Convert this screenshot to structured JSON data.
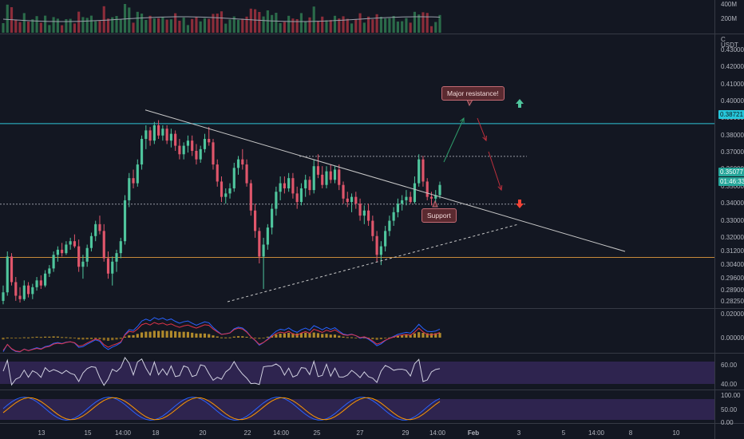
{
  "price_axis": {
    "unit_label": "USDT",
    "currency_symbol": "C",
    "ticks": [
      "0.43000",
      "0.42000",
      "0.41000",
      "0.40000",
      "0.39000",
      "0.38000",
      "0.37000",
      "0.36000",
      "0.35000",
      "0.34000",
      "0.33000",
      "0.32000",
      "0.31200",
      "0.30400",
      "0.29600",
      "0.28900",
      "0.28250"
    ],
    "current_price": "0.35077",
    "countdown": "01:46:33",
    "resistance_price": "0.38721"
  },
  "volume_axis": {
    "ticks": [
      "400M",
      "200M"
    ]
  },
  "macd_axis": {
    "ticks": [
      "0.02000",
      "0.00000"
    ]
  },
  "rsi_axis": {
    "ticks": [
      "60.00",
      "40.00"
    ]
  },
  "stoch_axis": {
    "ticks": [
      "100.00",
      "50.00",
      "0.00"
    ]
  },
  "time_axis": {
    "labels": [
      "13",
      "15",
      "14:00",
      "18",
      "20",
      "22",
      "14:00",
      "25",
      "27",
      "29",
      "14:00",
      "Feb",
      "3",
      "5",
      "14:00",
      "8",
      "10"
    ]
  },
  "annotations": {
    "resistance": "Major resistance!",
    "support": "Support"
  },
  "colors": {
    "background": "#131722",
    "bull": "#4fc59d",
    "bear": "#e0566b",
    "resistance_line": "#2ec4d6",
    "support_line": "#c88a3a",
    "rsi_band": "#3a2b63"
  },
  "chart_data": {
    "type": "candlestick",
    "symbol_quote": "USDT",
    "candles": [
      {
        "o": 0.283,
        "h": 0.292,
        "l": 0.281,
        "c": 0.288
      },
      {
        "o": 0.288,
        "h": 0.312,
        "l": 0.286,
        "c": 0.309
      },
      {
        "o": 0.309,
        "h": 0.311,
        "l": 0.292,
        "c": 0.294
      },
      {
        "o": 0.294,
        "h": 0.297,
        "l": 0.283,
        "c": 0.286
      },
      {
        "o": 0.286,
        "h": 0.291,
        "l": 0.282,
        "c": 0.284
      },
      {
        "o": 0.284,
        "h": 0.295,
        "l": 0.283,
        "c": 0.292
      },
      {
        "o": 0.292,
        "h": 0.294,
        "l": 0.285,
        "c": 0.287
      },
      {
        "o": 0.287,
        "h": 0.293,
        "l": 0.284,
        "c": 0.291
      },
      {
        "o": 0.291,
        "h": 0.297,
        "l": 0.289,
        "c": 0.295
      },
      {
        "o": 0.295,
        "h": 0.298,
        "l": 0.29,
        "c": 0.292
      },
      {
        "o": 0.292,
        "h": 0.301,
        "l": 0.291,
        "c": 0.299
      },
      {
        "o": 0.299,
        "h": 0.304,
        "l": 0.297,
        "c": 0.302
      },
      {
        "o": 0.302,
        "h": 0.312,
        "l": 0.3,
        "c": 0.31
      },
      {
        "o": 0.31,
        "h": 0.315,
        "l": 0.306,
        "c": 0.313
      },
      {
        "o": 0.313,
        "h": 0.317,
        "l": 0.309,
        "c": 0.311
      },
      {
        "o": 0.311,
        "h": 0.318,
        "l": 0.31,
        "c": 0.316
      },
      {
        "o": 0.316,
        "h": 0.32,
        "l": 0.313,
        "c": 0.318
      },
      {
        "o": 0.318,
        "h": 0.322,
        "l": 0.314,
        "c": 0.315
      },
      {
        "o": 0.315,
        "h": 0.319,
        "l": 0.3,
        "c": 0.303
      },
      {
        "o": 0.303,
        "h": 0.31,
        "l": 0.296,
        "c": 0.306
      },
      {
        "o": 0.306,
        "h": 0.316,
        "l": 0.303,
        "c": 0.314
      },
      {
        "o": 0.314,
        "h": 0.323,
        "l": 0.312,
        "c": 0.321
      },
      {
        "o": 0.321,
        "h": 0.33,
        "l": 0.318,
        "c": 0.328
      },
      {
        "o": 0.328,
        "h": 0.333,
        "l": 0.322,
        "c": 0.324
      },
      {
        "o": 0.324,
        "h": 0.328,
        "l": 0.306,
        "c": 0.308
      },
      {
        "o": 0.308,
        "h": 0.312,
        "l": 0.296,
        "c": 0.299
      },
      {
        "o": 0.299,
        "h": 0.309,
        "l": 0.292,
        "c": 0.306
      },
      {
        "o": 0.306,
        "h": 0.313,
        "l": 0.3,
        "c": 0.311
      },
      {
        "o": 0.311,
        "h": 0.32,
        "l": 0.308,
        "c": 0.318
      },
      {
        "o": 0.318,
        "h": 0.345,
        "l": 0.316,
        "c": 0.342
      },
      {
        "o": 0.342,
        "h": 0.358,
        "l": 0.338,
        "c": 0.355
      },
      {
        "o": 0.355,
        "h": 0.36,
        "l": 0.349,
        "c": 0.352
      },
      {
        "o": 0.352,
        "h": 0.366,
        "l": 0.35,
        "c": 0.363
      },
      {
        "o": 0.363,
        "h": 0.38,
        "l": 0.36,
        "c": 0.378
      },
      {
        "o": 0.378,
        "h": 0.386,
        "l": 0.372,
        "c": 0.383
      },
      {
        "o": 0.383,
        "h": 0.385,
        "l": 0.374,
        "c": 0.377
      },
      {
        "o": 0.377,
        "h": 0.388,
        "l": 0.375,
        "c": 0.386
      },
      {
        "o": 0.386,
        "h": 0.389,
        "l": 0.378,
        "c": 0.38
      },
      {
        "o": 0.38,
        "h": 0.386,
        "l": 0.377,
        "c": 0.384
      },
      {
        "o": 0.384,
        "h": 0.386,
        "l": 0.375,
        "c": 0.377
      },
      {
        "o": 0.377,
        "h": 0.384,
        "l": 0.373,
        "c": 0.381
      },
      {
        "o": 0.381,
        "h": 0.383,
        "l": 0.371,
        "c": 0.374
      },
      {
        "o": 0.374,
        "h": 0.378,
        "l": 0.366,
        "c": 0.369
      },
      {
        "o": 0.369,
        "h": 0.376,
        "l": 0.366,
        "c": 0.374
      },
      {
        "o": 0.374,
        "h": 0.38,
        "l": 0.37,
        "c": 0.377
      },
      {
        "o": 0.377,
        "h": 0.38,
        "l": 0.368,
        "c": 0.371
      },
      {
        "o": 0.371,
        "h": 0.375,
        "l": 0.363,
        "c": 0.366
      },
      {
        "o": 0.366,
        "h": 0.374,
        "l": 0.364,
        "c": 0.372
      },
      {
        "o": 0.372,
        "h": 0.381,
        "l": 0.37,
        "c": 0.378
      },
      {
        "o": 0.378,
        "h": 0.385,
        "l": 0.374,
        "c": 0.376
      },
      {
        "o": 0.376,
        "h": 0.378,
        "l": 0.36,
        "c": 0.363
      },
      {
        "o": 0.363,
        "h": 0.366,
        "l": 0.35,
        "c": 0.353
      },
      {
        "o": 0.353,
        "h": 0.356,
        "l": 0.341,
        "c": 0.344
      },
      {
        "o": 0.344,
        "h": 0.349,
        "l": 0.34,
        "c": 0.346
      },
      {
        "o": 0.346,
        "h": 0.352,
        "l": 0.343,
        "c": 0.349
      },
      {
        "o": 0.349,
        "h": 0.364,
        "l": 0.347,
        "c": 0.361
      },
      {
        "o": 0.361,
        "h": 0.368,
        "l": 0.357,
        "c": 0.366
      },
      {
        "o": 0.366,
        "h": 0.372,
        "l": 0.36,
        "c": 0.363
      },
      {
        "o": 0.363,
        "h": 0.366,
        "l": 0.35,
        "c": 0.352
      },
      {
        "o": 0.352,
        "h": 0.354,
        "l": 0.333,
        "c": 0.336
      },
      {
        "o": 0.336,
        "h": 0.34,
        "l": 0.32,
        "c": 0.324
      },
      {
        "o": 0.324,
        "h": 0.326,
        "l": 0.305,
        "c": 0.309
      },
      {
        "o": 0.309,
        "h": 0.32,
        "l": 0.29,
        "c": 0.316
      },
      {
        "o": 0.316,
        "h": 0.328,
        "l": 0.313,
        "c": 0.326
      },
      {
        "o": 0.326,
        "h": 0.34,
        "l": 0.322,
        "c": 0.337
      },
      {
        "o": 0.337,
        "h": 0.35,
        "l": 0.333,
        "c": 0.347
      },
      {
        "o": 0.347,
        "h": 0.356,
        "l": 0.342,
        "c": 0.352
      },
      {
        "o": 0.352,
        "h": 0.356,
        "l": 0.346,
        "c": 0.349
      },
      {
        "o": 0.349,
        "h": 0.358,
        "l": 0.347,
        "c": 0.355
      },
      {
        "o": 0.355,
        "h": 0.358,
        "l": 0.343,
        "c": 0.346
      },
      {
        "o": 0.346,
        "h": 0.35,
        "l": 0.337,
        "c": 0.341
      },
      {
        "o": 0.341,
        "h": 0.352,
        "l": 0.339,
        "c": 0.349
      },
      {
        "o": 0.349,
        "h": 0.357,
        "l": 0.344,
        "c": 0.354
      },
      {
        "o": 0.354,
        "h": 0.356,
        "l": 0.345,
        "c": 0.348
      },
      {
        "o": 0.348,
        "h": 0.366,
        "l": 0.346,
        "c": 0.362
      },
      {
        "o": 0.362,
        "h": 0.369,
        "l": 0.355,
        "c": 0.357
      },
      {
        "o": 0.357,
        "h": 0.362,
        "l": 0.349,
        "c": 0.351
      },
      {
        "o": 0.351,
        "h": 0.362,
        "l": 0.349,
        "c": 0.359
      },
      {
        "o": 0.359,
        "h": 0.363,
        "l": 0.352,
        "c": 0.354
      },
      {
        "o": 0.354,
        "h": 0.362,
        "l": 0.352,
        "c": 0.36
      },
      {
        "o": 0.36,
        "h": 0.363,
        "l": 0.348,
        "c": 0.351
      },
      {
        "o": 0.351,
        "h": 0.353,
        "l": 0.34,
        "c": 0.343
      },
      {
        "o": 0.343,
        "h": 0.347,
        "l": 0.338,
        "c": 0.341
      },
      {
        "o": 0.341,
        "h": 0.346,
        "l": 0.335,
        "c": 0.344
      },
      {
        "o": 0.344,
        "h": 0.347,
        "l": 0.337,
        "c": 0.34
      },
      {
        "o": 0.34,
        "h": 0.343,
        "l": 0.33,
        "c": 0.333
      },
      {
        "o": 0.333,
        "h": 0.339,
        "l": 0.328,
        "c": 0.336
      },
      {
        "o": 0.336,
        "h": 0.34,
        "l": 0.327,
        "c": 0.33
      },
      {
        "o": 0.33,
        "h": 0.333,
        "l": 0.318,
        "c": 0.321
      },
      {
        "o": 0.321,
        "h": 0.324,
        "l": 0.306,
        "c": 0.31
      },
      {
        "o": 0.31,
        "h": 0.318,
        "l": 0.304,
        "c": 0.315
      },
      {
        "o": 0.315,
        "h": 0.327,
        "l": 0.312,
        "c": 0.324
      },
      {
        "o": 0.324,
        "h": 0.333,
        "l": 0.321,
        "c": 0.33
      },
      {
        "o": 0.33,
        "h": 0.338,
        "l": 0.327,
        "c": 0.335
      },
      {
        "o": 0.335,
        "h": 0.343,
        "l": 0.332,
        "c": 0.34
      },
      {
        "o": 0.34,
        "h": 0.345,
        "l": 0.336,
        "c": 0.342
      },
      {
        "o": 0.342,
        "h": 0.348,
        "l": 0.339,
        "c": 0.344
      },
      {
        "o": 0.344,
        "h": 0.347,
        "l": 0.34,
        "c": 0.341
      },
      {
        "o": 0.341,
        "h": 0.356,
        "l": 0.34,
        "c": 0.352
      },
      {
        "o": 0.352,
        "h": 0.369,
        "l": 0.35,
        "c": 0.366
      },
      {
        "o": 0.366,
        "h": 0.368,
        "l": 0.35,
        "c": 0.353
      },
      {
        "o": 0.353,
        "h": 0.355,
        "l": 0.342,
        "c": 0.344
      },
      {
        "o": 0.344,
        "h": 0.347,
        "l": 0.339,
        "c": 0.343
      },
      {
        "o": 0.343,
        "h": 0.348,
        "l": 0.341,
        "c": 0.345
      },
      {
        "o": 0.345,
        "h": 0.353,
        "l": 0.343,
        "c": 0.351
      }
    ],
    "horizontal_levels": [
      {
        "price": 0.38721,
        "style": "solid"
      },
      {
        "price": 0.3087,
        "style": "solid"
      },
      {
        "price": 0.368,
        "style": "dotted"
      },
      {
        "price": 0.34,
        "style": "dotted"
      }
    ],
    "trendlines": [
      {
        "from": {
          "t": "14",
          "p": 0.395
        },
        "to": {
          "t": "8",
          "p": 0.308
        },
        "style": "solid"
      },
      {
        "from": {
          "t": "22",
          "p": 0.282
        },
        "to": {
          "t": "3",
          "p": 0.328
        },
        "style": "dashed"
      }
    ],
    "indicators": [
      "Volume",
      "MACD",
      "RSI",
      "Stochastic RSI"
    ],
    "grid": false
  }
}
